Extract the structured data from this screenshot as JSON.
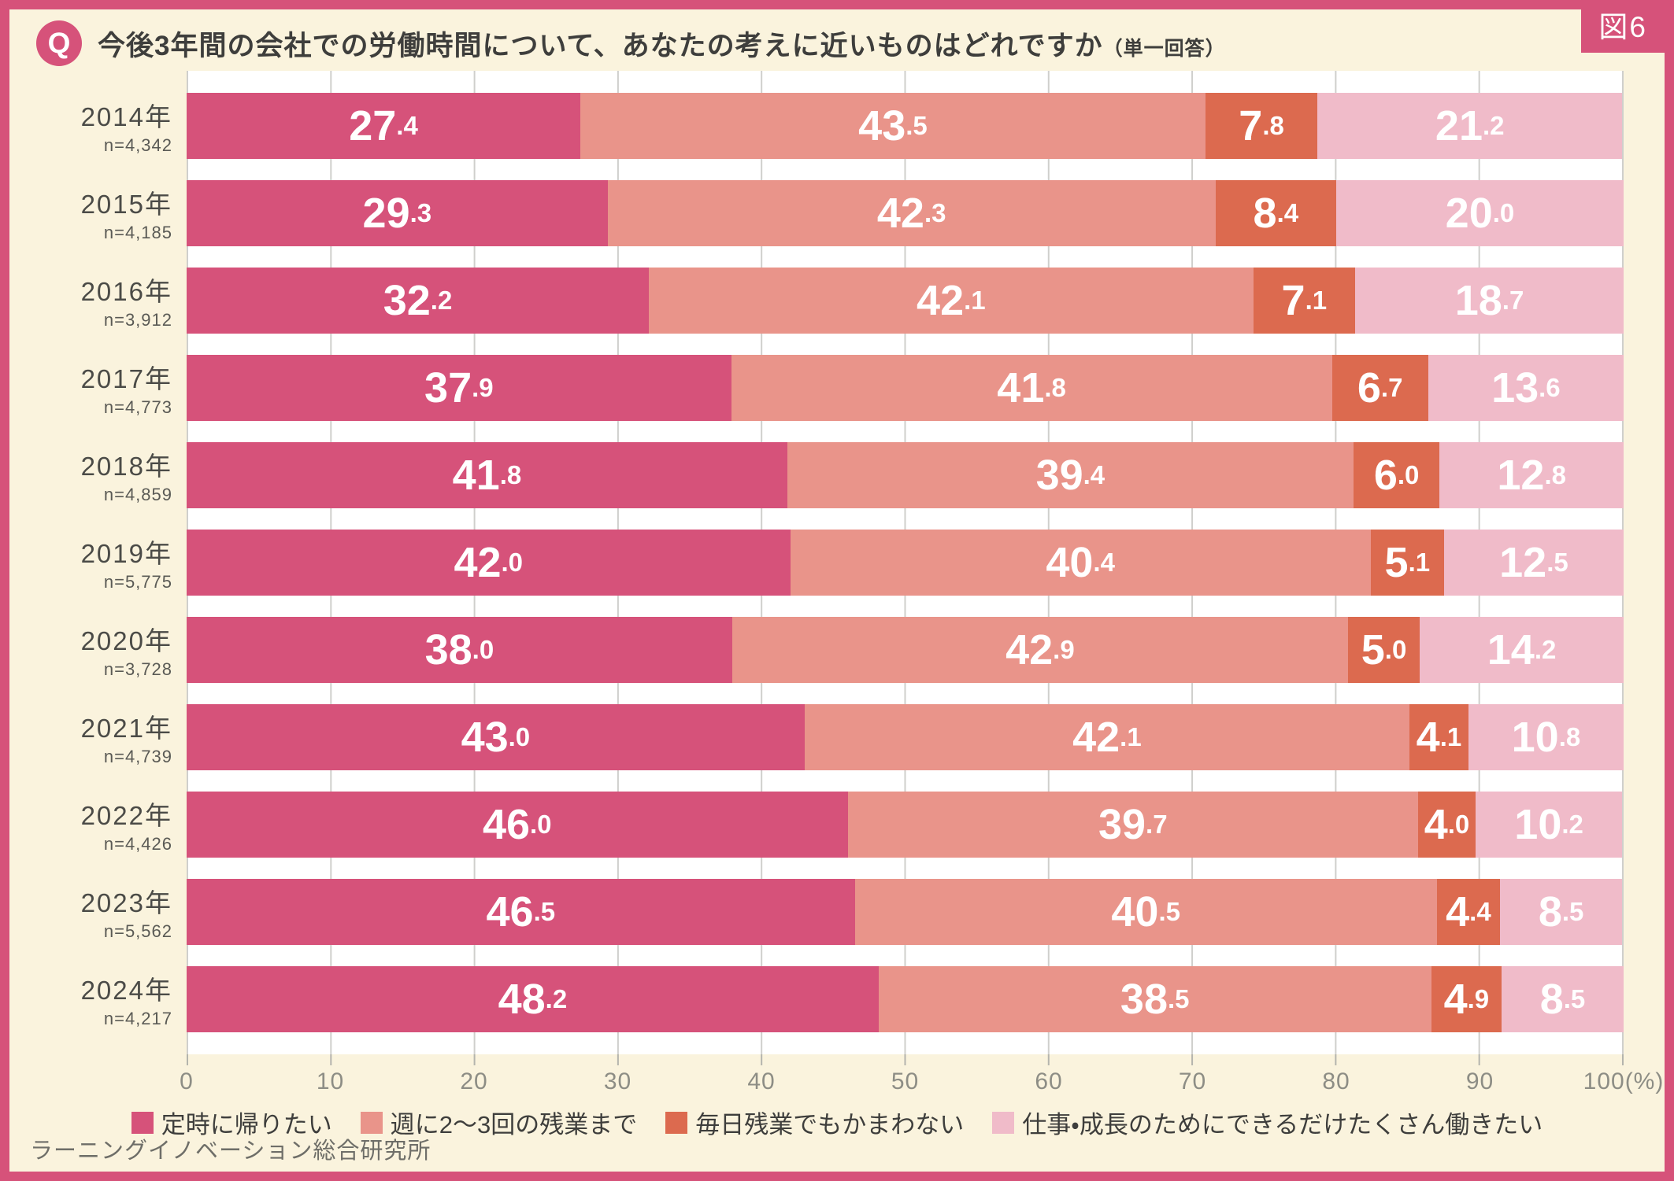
{
  "figure_label": "図6",
  "header": {
    "q_badge": "Q",
    "title": "今後3年間の会社での労働時間について、あなたの考えに近いものはどれですか",
    "title_note": "（単一回答）"
  },
  "axis": {
    "tick_labels": [
      "0",
      "10",
      "20",
      "30",
      "40",
      "50",
      "60",
      "70",
      "80",
      "90",
      "100(%)"
    ]
  },
  "footer": {
    "source": "ラーニングイノベーション総合研究所"
  },
  "colors": {
    "frame": "#d6527a",
    "background": "#faf3dd",
    "plot_background": "#ffffff",
    "gridline": "#cfcfcc",
    "tick": "#b4b4ad",
    "axis_text": "#8d8d85"
  },
  "chart_data": {
    "type": "bar",
    "stacked": true,
    "orientation": "horizontal",
    "unit": "%",
    "xlim": [
      0,
      100
    ],
    "grid": true,
    "legend_position": "bottom",
    "title": "今後3年間の会社での労働時間について、あなたの考えに近いものはどれですか（単一回答）",
    "categories": [
      "2014年",
      "2015年",
      "2016年",
      "2017年",
      "2018年",
      "2019年",
      "2020年",
      "2021年",
      "2022年",
      "2023年",
      "2024年"
    ],
    "sample_sizes": [
      "n=4,342",
      "n=4,185",
      "n=3,912",
      "n=4,773",
      "n=4,859",
      "n=5,775",
      "n=3,728",
      "n=4,739",
      "n=4,426",
      "n=5,562",
      "n=4,217"
    ],
    "series": [
      {
        "name": "定時に帰りたい",
        "color": "#d6527a",
        "values": [
          27.4,
          29.3,
          32.2,
          37.9,
          41.8,
          42.0,
          38.0,
          43.0,
          46.0,
          46.5,
          48.2
        ]
      },
      {
        "name": "週に2～3回の残業まで",
        "color": "#e9948a",
        "values": [
          43.5,
          42.3,
          42.1,
          41.8,
          39.4,
          40.4,
          42.9,
          42.1,
          39.7,
          40.5,
          38.5
        ]
      },
      {
        "name": "毎日残業でもかまわない",
        "color": "#dc6a4f",
        "values": [
          7.8,
          8.4,
          7.1,
          6.7,
          6.0,
          5.1,
          5.0,
          4.1,
          4.0,
          4.4,
          4.9
        ]
      },
      {
        "name": "仕事・成長のためにできるだけたくさん働きたい",
        "color": "#f0bbc9",
        "values": [
          21.2,
          20.0,
          18.7,
          13.6,
          12.8,
          12.5,
          14.2,
          10.8,
          10.2,
          8.5,
          8.5
        ]
      }
    ]
  }
}
